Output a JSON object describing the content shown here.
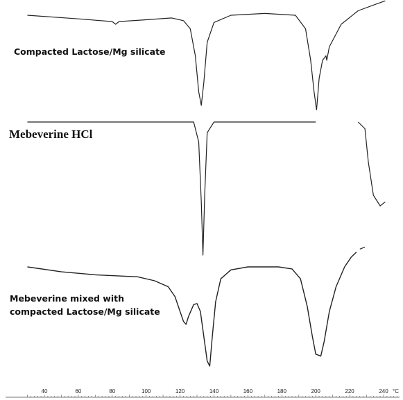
{
  "chart_data": {
    "type": "line",
    "xlabel": "",
    "ylabel": "",
    "x_unit": "°C",
    "xlim": [
      30,
      250
    ],
    "x_ticks": [
      40,
      60,
      80,
      100,
      120,
      140,
      160,
      180,
      200,
      220,
      240
    ],
    "grid": false,
    "legend": "none",
    "line_color": "#222222",
    "series": [
      {
        "name": "Compacted Lactose/Mg silicate",
        "points": [
          [
            30,
            0.0
          ],
          [
            60,
            -0.04
          ],
          [
            80,
            -0.07
          ],
          [
            82,
            -0.1
          ],
          [
            84,
            -0.07
          ],
          [
            100,
            -0.05
          ],
          [
            115,
            -0.03
          ],
          [
            122,
            -0.06
          ],
          [
            126,
            -0.15
          ],
          [
            129,
            -0.45
          ],
          [
            131,
            -0.85
          ],
          [
            132.5,
            -1.0
          ],
          [
            134,
            -0.75
          ],
          [
            136,
            -0.3
          ],
          [
            140,
            -0.08
          ],
          [
            150,
            0.0
          ],
          [
            170,
            0.02
          ],
          [
            188,
            0.0
          ],
          [
            194,
            -0.15
          ],
          [
            197,
            -0.5
          ],
          [
            199,
            -0.85
          ],
          [
            200.5,
            -1.05
          ],
          [
            202,
            -0.7
          ],
          [
            204,
            -0.5
          ],
          [
            206,
            -0.45
          ],
          [
            206.5,
            -0.5
          ],
          [
            208,
            -0.35
          ],
          [
            215,
            -0.1
          ],
          [
            225,
            0.05
          ],
          [
            235,
            0.12
          ],
          [
            241,
            0.16
          ]
        ]
      },
      {
        "name": "Mebeverine HCl",
        "points": [
          [
            30,
            0.0
          ],
          [
            60,
            0.0
          ],
          [
            100,
            0.0
          ],
          [
            128,
            0.0
          ],
          [
            131,
            -0.15
          ],
          [
            132.5,
            -0.6
          ],
          [
            133.5,
            -1.0
          ],
          [
            134.5,
            -0.55
          ],
          [
            136,
            -0.08
          ],
          [
            140,
            0.0
          ],
          [
            160,
            0.0
          ],
          [
            200,
            0.0
          ]
        ],
        "segments": [
          [
            [
              225,
              0.0
            ],
            [
              229,
              -0.05
            ],
            [
              231,
              -0.3
            ],
            [
              234,
              -0.55
            ],
            [
              238,
              -0.63
            ],
            [
              241,
              -0.6
            ]
          ]
        ]
      },
      {
        "name": "Mebeverine mixed with compacted Lactose/Mg silicate",
        "points": [
          [
            30,
            0.0
          ],
          [
            50,
            -0.05
          ],
          [
            70,
            -0.08
          ],
          [
            95,
            -0.1
          ],
          [
            105,
            -0.14
          ],
          [
            113,
            -0.2
          ],
          [
            117,
            -0.3
          ],
          [
            120,
            -0.45
          ],
          [
            122,
            -0.55
          ],
          [
            123.5,
            -0.58
          ],
          [
            125,
            -0.5
          ],
          [
            128,
            -0.38
          ],
          [
            130,
            -0.37
          ],
          [
            132,
            -0.45
          ],
          [
            134,
            -0.7
          ],
          [
            136,
            -0.95
          ],
          [
            137.5,
            -1.0
          ],
          [
            139,
            -0.7
          ],
          [
            141,
            -0.35
          ],
          [
            144,
            -0.12
          ],
          [
            150,
            -0.03
          ],
          [
            160,
            0.0
          ],
          [
            178,
            0.0
          ],
          [
            186,
            -0.02
          ],
          [
            191,
            -0.12
          ],
          [
            195,
            -0.4
          ],
          [
            198,
            -0.7
          ],
          [
            200,
            -0.88
          ],
          [
            203,
            -0.9
          ],
          [
            205,
            -0.75
          ],
          [
            208,
            -0.45
          ],
          [
            212,
            -0.2
          ],
          [
            217,
            0.0
          ],
          [
            221,
            0.1
          ],
          [
            224,
            0.15
          ]
        ],
        "segments": [
          [
            [
              226,
              0.18
            ],
            [
              229,
              0.2
            ]
          ]
        ]
      }
    ]
  }
}
